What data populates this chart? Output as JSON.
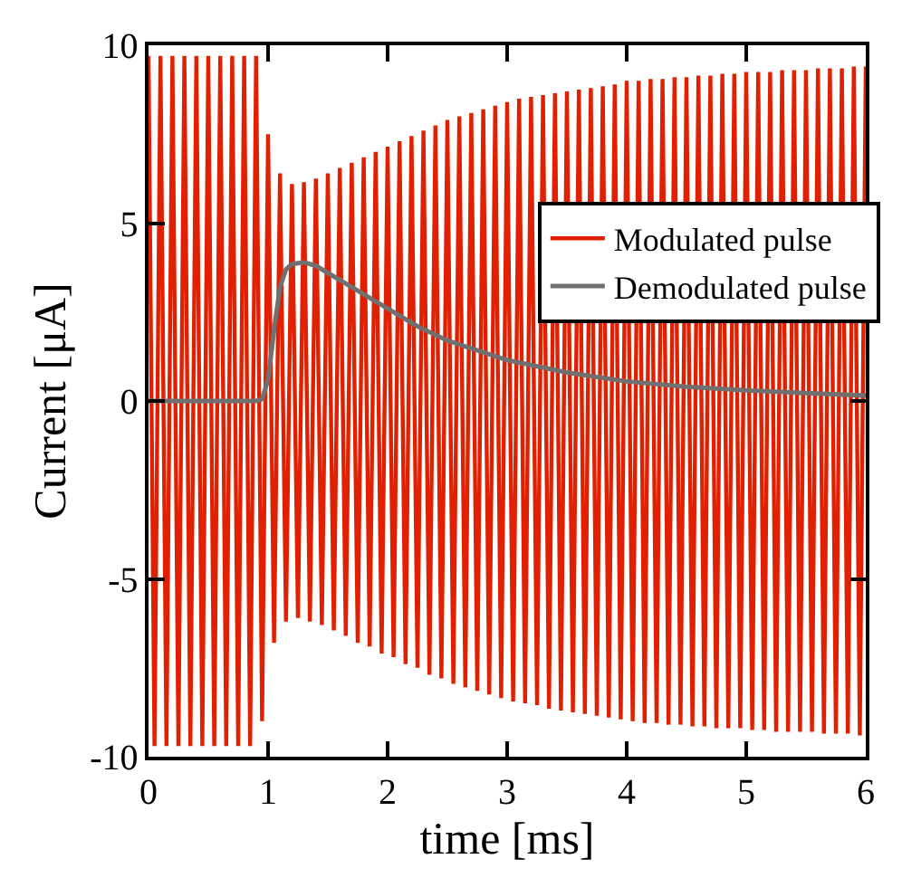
{
  "chart_data": {
    "type": "line",
    "xlabel": "time [ms]",
    "ylabel": "Current [μA]",
    "xlim": [
      0,
      6
    ],
    "xticks": [
      0,
      1,
      2,
      3,
      4,
      5,
      6
    ],
    "ylim": [
      -10,
      10
    ],
    "yticks": [
      -10,
      -5,
      0,
      5,
      10
    ],
    "grid": false,
    "legend": "top right",
    "marker": "none",
    "line_style": "solid",
    "series": [
      {
        "name": "Modulated pulse",
        "color": "#e02000",
        "x": [
          0,
          0.05,
          0.1,
          0.15,
          0.2,
          0.25,
          0.3,
          0.35,
          0.4,
          0.45,
          0.5,
          0.55,
          0.6,
          0.65,
          0.7,
          0.75,
          0.8,
          0.85,
          0.9,
          0.95,
          1,
          1.05,
          1.1,
          1.15,
          1.2,
          1.25,
          1.3,
          1.35,
          1.4,
          1.45,
          1.5,
          1.55,
          1.6,
          1.65,
          1.7,
          1.75,
          1.8,
          1.85,
          1.9,
          1.95,
          2,
          2.05,
          2.1,
          2.15,
          2.2,
          2.25,
          2.3,
          2.35,
          2.4,
          2.45,
          2.5,
          2.55,
          2.6,
          2.65,
          2.7,
          2.75,
          2.8,
          2.85,
          2.9,
          2.95,
          3,
          3.05,
          3.1,
          3.15,
          3.2,
          3.25,
          3.3,
          3.35,
          3.4,
          3.45,
          3.5,
          3.55,
          3.6,
          3.65,
          3.7,
          3.75,
          3.8,
          3.85,
          3.9,
          3.95,
          4,
          4.05,
          4.1,
          4.15,
          4.2,
          4.25,
          4.3,
          4.35,
          4.4,
          4.45,
          4.5,
          4.55,
          4.6,
          4.65,
          4.7,
          4.75,
          4.8,
          4.85,
          4.9,
          4.95,
          5,
          5.05,
          5.1,
          5.15,
          5.2,
          5.25,
          5.3,
          5.35,
          5.4,
          5.45,
          5.5,
          5.55,
          5.6,
          5.65,
          5.7,
          5.75,
          5.8,
          5.85,
          5.9,
          5.95,
          6
        ],
        "values": [
          9.7,
          -9.7,
          9.7,
          -9.7,
          9.7,
          -9.7,
          9.7,
          -9.7,
          9.7,
          -9.7,
          9.7,
          -9.7,
          9.7,
          -9.7,
          9.7,
          -9.7,
          9.7,
          -9.7,
          9.7,
          -9.0,
          7.5,
          -6.8,
          6.4,
          -6.2,
          6.1,
          -6.1,
          6.15,
          -6.2,
          6.25,
          -6.3,
          6.4,
          -6.45,
          6.55,
          -6.6,
          6.7,
          -6.8,
          6.85,
          -6.9,
          7.0,
          -7.1,
          7.15,
          -7.2,
          7.3,
          -7.4,
          7.45,
          -7.5,
          7.6,
          -7.7,
          7.75,
          -7.8,
          7.9,
          -7.95,
          8.0,
          -8.05,
          8.1,
          -8.15,
          8.2,
          -8.25,
          8.3,
          -8.35,
          8.4,
          -8.45,
          8.5,
          -8.5,
          8.55,
          -8.55,
          8.6,
          -8.65,
          8.65,
          -8.7,
          8.7,
          -8.75,
          8.75,
          -8.8,
          8.8,
          -8.85,
          8.85,
          -8.9,
          8.9,
          -8.95,
          9.0,
          -9.0,
          9.0,
          -9.05,
          9.05,
          -9.05,
          9.05,
          -9.1,
          9.1,
          -9.1,
          9.1,
          -9.15,
          9.15,
          -9.15,
          9.15,
          -9.2,
          9.2,
          -9.2,
          9.2,
          -9.2,
          9.25,
          -9.25,
          9.25,
          -9.25,
          9.25,
          -9.3,
          9.3,
          -9.3,
          9.3,
          -9.3,
          9.3,
          -9.3,
          9.35,
          -9.35,
          9.35,
          -9.35,
          9.35,
          -9.35,
          9.4,
          -9.4,
          9.4
        ]
      },
      {
        "name": "Demodulated pulse",
        "color": "#707070",
        "x": [
          0,
          0.9,
          0.95,
          1,
          1.05,
          1.1,
          1.15,
          1.2,
          1.3,
          1.4,
          1.5,
          1.75,
          2,
          2.25,
          2.5,
          3,
          3.5,
          4,
          4.5,
          5,
          5.5,
          6
        ],
        "values": [
          0,
          0,
          0.05,
          0.6,
          2.0,
          3.2,
          3.7,
          3.85,
          3.9,
          3.8,
          3.6,
          3.1,
          2.6,
          2.1,
          1.7,
          1.15,
          0.8,
          0.55,
          0.4,
          0.3,
          0.22,
          0.15
        ]
      }
    ]
  }
}
